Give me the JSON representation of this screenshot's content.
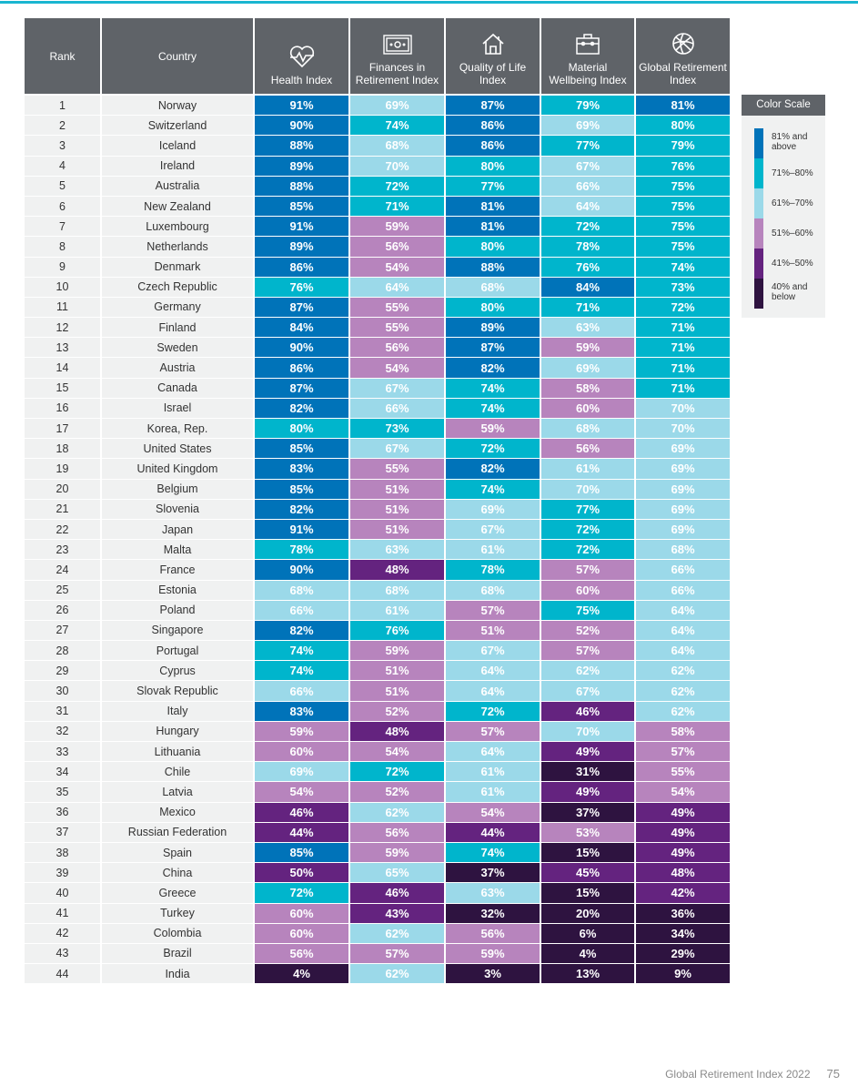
{
  "header": {
    "rank": "Rank",
    "country": "Country",
    "columns": [
      {
        "label": "Health Index",
        "icon": "heart-pulse-icon"
      },
      {
        "label": "Finances in Retirement Index",
        "icon": "banknote-icon"
      },
      {
        "label": "Quality of Life Index",
        "icon": "house-icon"
      },
      {
        "label": "Material Wellbeing Index",
        "icon": "briefcase-icon"
      },
      {
        "label": "Global Retirement Index",
        "icon": "globe-icon"
      }
    ]
  },
  "rows": [
    {
      "rank": "1",
      "country": "Norway",
      "values": [
        91,
        69,
        87,
        79,
        81
      ]
    },
    {
      "rank": "2",
      "country": "Switzerland",
      "values": [
        90,
        74,
        86,
        69,
        80
      ]
    },
    {
      "rank": "3",
      "country": "Iceland",
      "values": [
        88,
        68,
        86,
        77,
        79
      ]
    },
    {
      "rank": "4",
      "country": "Ireland",
      "values": [
        89,
        70,
        80,
        67,
        76
      ]
    },
    {
      "rank": "5",
      "country": "Australia",
      "values": [
        88,
        72,
        77,
        66,
        75
      ]
    },
    {
      "rank": "6",
      "country": "New Zealand",
      "values": [
        85,
        71,
        81,
        64,
        75
      ]
    },
    {
      "rank": "7",
      "country": "Luxembourg",
      "values": [
        91,
        59,
        81,
        72,
        75
      ]
    },
    {
      "rank": "8",
      "country": "Netherlands",
      "values": [
        89,
        56,
        80,
        78,
        75
      ]
    },
    {
      "rank": "9",
      "country": "Denmark",
      "values": [
        86,
        54,
        88,
        76,
        74
      ]
    },
    {
      "rank": "10",
      "country": "Czech Republic",
      "values": [
        76,
        64,
        68,
        84,
        73
      ]
    },
    {
      "rank": "11",
      "country": "Germany",
      "values": [
        87,
        55,
        80,
        71,
        72
      ]
    },
    {
      "rank": "12",
      "country": "Finland",
      "values": [
        84,
        55,
        89,
        63,
        71
      ]
    },
    {
      "rank": "13",
      "country": "Sweden",
      "values": [
        90,
        56,
        87,
        59,
        71
      ]
    },
    {
      "rank": "14",
      "country": "Austria",
      "values": [
        86,
        54,
        82,
        69,
        71
      ]
    },
    {
      "rank": "15",
      "country": "Canada",
      "values": [
        87,
        67,
        74,
        58,
        71
      ]
    },
    {
      "rank": "16",
      "country": "Israel",
      "values": [
        82,
        66,
        74,
        60,
        70
      ]
    },
    {
      "rank": "17",
      "country": "Korea, Rep.",
      "values": [
        80,
        73,
        59,
        68,
        70
      ]
    },
    {
      "rank": "18",
      "country": "United States",
      "values": [
        85,
        67,
        72,
        56,
        69
      ]
    },
    {
      "rank": "19",
      "country": "United Kingdom",
      "values": [
        83,
        55,
        82,
        61,
        69
      ]
    },
    {
      "rank": "20",
      "country": "Belgium",
      "values": [
        85,
        51,
        74,
        70,
        69
      ]
    },
    {
      "rank": "21",
      "country": "Slovenia",
      "values": [
        82,
        51,
        69,
        77,
        69
      ]
    },
    {
      "rank": "22",
      "country": "Japan",
      "values": [
        91,
        51,
        67,
        72,
        69
      ]
    },
    {
      "rank": "23",
      "country": "Malta",
      "values": [
        78,
        63,
        61,
        72,
        68
      ]
    },
    {
      "rank": "24",
      "country": "France",
      "values": [
        90,
        48,
        78,
        57,
        66
      ]
    },
    {
      "rank": "25",
      "country": "Estonia",
      "values": [
        68,
        68,
        68,
        60,
        66
      ]
    },
    {
      "rank": "26",
      "country": "Poland",
      "values": [
        66,
        61,
        57,
        75,
        64
      ]
    },
    {
      "rank": "27",
      "country": "Singapore",
      "values": [
        82,
        76,
        51,
        52,
        64
      ]
    },
    {
      "rank": "28",
      "country": "Portugal",
      "values": [
        74,
        59,
        67,
        57,
        64
      ]
    },
    {
      "rank": "29",
      "country": "Cyprus",
      "values": [
        74,
        51,
        64,
        62,
        62
      ]
    },
    {
      "rank": "30",
      "country": "Slovak Republic",
      "values": [
        66,
        51,
        64,
        67,
        62
      ]
    },
    {
      "rank": "31",
      "country": "Italy",
      "values": [
        83,
        52,
        72,
        46,
        62
      ]
    },
    {
      "rank": "32",
      "country": "Hungary",
      "values": [
        59,
        48,
        57,
        70,
        58
      ]
    },
    {
      "rank": "33",
      "country": "Lithuania",
      "values": [
        60,
        54,
        64,
        49,
        57
      ]
    },
    {
      "rank": "34",
      "country": "Chile",
      "values": [
        69,
        72,
        61,
        31,
        55
      ]
    },
    {
      "rank": "35",
      "country": "Latvia",
      "values": [
        54,
        52,
        61,
        49,
        54
      ]
    },
    {
      "rank": "36",
      "country": "Mexico",
      "values": [
        46,
        62,
        54,
        37,
        49
      ]
    },
    {
      "rank": "37",
      "country": "Russian Federation",
      "values": [
        44,
        56,
        44,
        53,
        49
      ]
    },
    {
      "rank": "38",
      "country": "Spain",
      "values": [
        85,
        59,
        74,
        15,
        49
      ]
    },
    {
      "rank": "39",
      "country": "China",
      "values": [
        50,
        65,
        37,
        45,
        48
      ]
    },
    {
      "rank": "40",
      "country": "Greece",
      "values": [
        72,
        46,
        63,
        15,
        42
      ]
    },
    {
      "rank": "41",
      "country": "Turkey",
      "values": [
        60,
        43,
        32,
        20,
        36
      ]
    },
    {
      "rank": "42",
      "country": "Colombia",
      "values": [
        60,
        62,
        56,
        6,
        34
      ]
    },
    {
      "rank": "43",
      "country": "Brazil",
      "values": [
        56,
        57,
        59,
        4,
        29
      ]
    },
    {
      "rank": "44",
      "country": "India",
      "values": [
        4,
        62,
        3,
        13,
        9
      ]
    }
  ],
  "legend": {
    "title": "Color Scale",
    "items": [
      {
        "label": "81% and above",
        "min": 81,
        "color": "#0073b9"
      },
      {
        "label": "71%–80%",
        "min": 71,
        "color": "#00b5cc"
      },
      {
        "label": "61%–70%",
        "min": 61,
        "color": "#9bd9e9"
      },
      {
        "label": "51%–60%",
        "min": 51,
        "color": "#b784bd"
      },
      {
        "label": "41%–50%",
        "min": 41,
        "color": "#64237f"
      },
      {
        "label": "40% and below",
        "min": 0,
        "color": "#2e1340"
      }
    ]
  },
  "footer": {
    "title": "Global Retirement Index 2022",
    "page": "75"
  }
}
